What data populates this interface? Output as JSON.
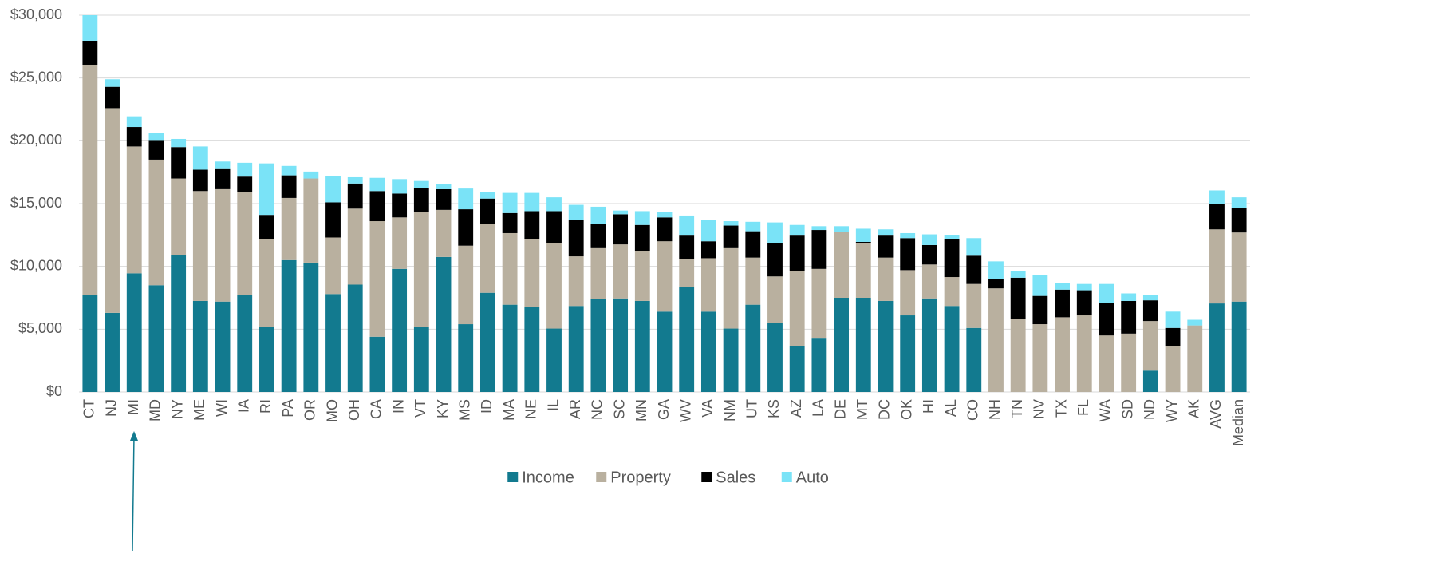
{
  "chart_data": {
    "type": "bar",
    "stacked": true,
    "categories": [
      "CT",
      "NJ",
      "MI",
      "MD",
      "NY",
      "ME",
      "WI",
      "IA",
      "RI",
      "PA",
      "OR",
      "MO",
      "OH",
      "CA",
      "IN",
      "VT",
      "KY",
      "MS",
      "ID",
      "MA",
      "NE",
      "IL",
      "AR",
      "NC",
      "SC",
      "MN",
      "GA",
      "WV",
      "VA",
      "NM",
      "UT",
      "KS",
      "AZ",
      "LA",
      "DE",
      "MT",
      "DC",
      "OK",
      "HI",
      "AL",
      "CO",
      "NH",
      "TN",
      "NV",
      "TX",
      "FL",
      "WA",
      "SD",
      "ND",
      "WY",
      "AK",
      "AVG",
      "Median"
    ],
    "series": [
      {
        "name": "Income",
        "color": "#127a8f",
        "values": [
          7700,
          6300,
          9450,
          8500,
          10900,
          7250,
          7200,
          7700,
          5200,
          10500,
          10300,
          7800,
          8550,
          4400,
          9800,
          5200,
          10750,
          5400,
          7900,
          6950,
          6750,
          5050,
          6850,
          7400,
          7450,
          7250,
          6400,
          8350,
          6400,
          5050,
          6950,
          5500,
          3650,
          4250,
          7500,
          7500,
          7250,
          6100,
          7450,
          6850,
          5100,
          0,
          0,
          0,
          0,
          0,
          0,
          0,
          1700,
          0,
          0,
          7050,
          7200
        ]
      },
      {
        "name": "Property",
        "color": "#b9b09f",
        "values": [
          18360,
          16300,
          10100,
          10000,
          6100,
          8750,
          8950,
          8200,
          6950,
          4950,
          6700,
          4500,
          6050,
          9200,
          4100,
          9150,
          3750,
          6250,
          5500,
          5700,
          5450,
          6800,
          3950,
          4050,
          4300,
          4000,
          5600,
          2250,
          4250,
          6400,
          3750,
          3700,
          6000,
          5550,
          5250,
          4350,
          3450,
          3600,
          2700,
          2300,
          3500,
          8250,
          5800,
          5400,
          5950,
          6100,
          4500,
          4650,
          3950,
          3650,
          5300,
          5900,
          5500
        ]
      },
      {
        "name": "Sales",
        "color": "#000000",
        "values": [
          1910,
          1700,
          1550,
          1500,
          2500,
          1700,
          1600,
          1250,
          1950,
          1800,
          0,
          2800,
          2000,
          2400,
          1900,
          1900,
          1650,
          2900,
          2000,
          1600,
          2200,
          2550,
          2900,
          1950,
          2400,
          2050,
          1900,
          1850,
          1350,
          1800,
          2100,
          2650,
          2800,
          3100,
          0,
          100,
          1750,
          2550,
          1550,
          3000,
          2250,
          750,
          3300,
          2250,
          2200,
          2000,
          2600,
          2600,
          1650,
          1450,
          0,
          2050,
          1950
        ]
      },
      {
        "name": "Auto",
        "color": "#7ae3f7",
        "values": [
          2030,
          600,
          850,
          650,
          650,
          1850,
          600,
          1100,
          4100,
          750,
          550,
          2100,
          500,
          1050,
          1150,
          550,
          400,
          1650,
          550,
          1600,
          1450,
          1100,
          1200,
          1350,
          300,
          1100,
          450,
          1600,
          1700,
          350,
          750,
          1650,
          850,
          300,
          450,
          1050,
          500,
          400,
          850,
          350,
          1400,
          1400,
          500,
          1650,
          500,
          500,
          1500,
          600,
          450,
          1300,
          450,
          1050,
          850
        ]
      }
    ],
    "ylim": [
      0,
      30000
    ],
    "yticks": [
      {
        "value": 0,
        "label": "$0"
      },
      {
        "value": 5000,
        "label": "$5,000"
      },
      {
        "value": 10000,
        "label": "$10,000"
      },
      {
        "value": 15000,
        "label": "$15,000"
      },
      {
        "value": 20000,
        "label": "$20,000"
      },
      {
        "value": 25000,
        "label": "$25,000"
      },
      {
        "value": 30000,
        "label": "$30,000"
      }
    ],
    "grid": true,
    "legend": "bottom"
  }
}
